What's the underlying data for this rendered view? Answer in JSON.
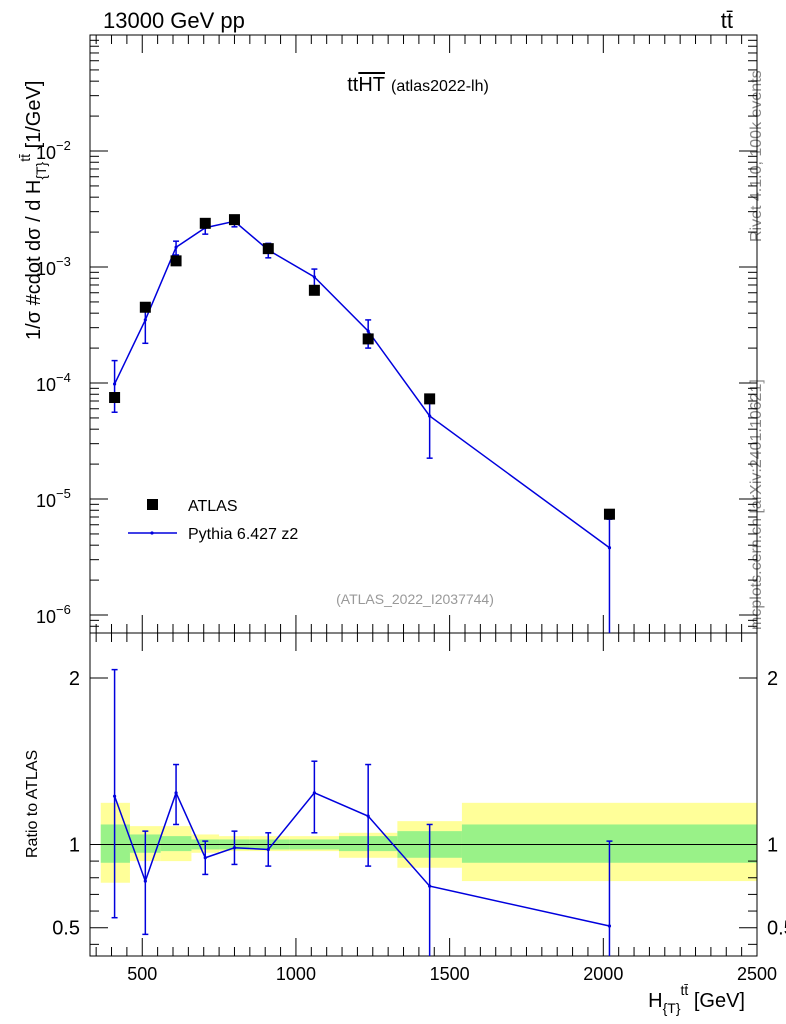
{
  "header": {
    "beam_label": "13000 GeV pp",
    "process_label": "tt̄"
  },
  "side_labels": {
    "rivet": "Rivet 4.1.0,  100k events",
    "mcplots": "mcplots.cern.ch [arXiv:2401.10621]"
  },
  "chart_data": [
    {
      "type": "scatter",
      "panel": "main",
      "title": "tt̄HT (atlas2022-lh)",
      "title_main": "tt",
      "title_over": "HT",
      "title_sub": "(atlas2022-lh)",
      "watermark": "(ATLAS_2022_I2037744)",
      "ylabel": "1/σ #cdot dσ / d H_{T}^{tt̄} [1/GeV]",
      "ylabel_main": "1/σ #cdot dσ / d H",
      "ylabel_sub": "{T}",
      "ylabel_sup": "tt̄",
      "ylabel_unit": " [1/GeV]",
      "yscale": "log",
      "ylim": [
        7e-07,
        0.1
      ],
      "xlim": [
        330,
        2500
      ],
      "y_tick_labels": [
        {
          "base": "10",
          "exp": "−6",
          "value": 1e-06
        },
        {
          "base": "10",
          "exp": "−5",
          "value": 1e-05
        },
        {
          "base": "10",
          "exp": "−4",
          "value": 0.0001
        },
        {
          "base": "10",
          "exp": "−3",
          "value": 0.001
        },
        {
          "base": "10",
          "exp": "−2",
          "value": 0.01
        }
      ],
      "legend_position": "bottom-left",
      "series": [
        {
          "name": "ATLAS",
          "color": "#000000",
          "marker": "square",
          "x": [
            410,
            510,
            610,
            705,
            800,
            910,
            1060,
            1235,
            1435,
            2020
          ],
          "y": [
            7.5e-05,
            0.00045,
            0.00113,
            0.00238,
            0.00256,
            0.00144,
            0.00063,
            0.00024,
            7.3e-05,
            7.4e-06
          ]
        },
        {
          "name": "Pythia 6.427 z2",
          "color": "#0000dd",
          "marker": "line",
          "x": [
            410,
            510,
            610,
            705,
            800,
            910,
            1060,
            1235,
            1435,
            2020
          ],
          "y": [
            9.8e-05,
            0.00035,
            0.00148,
            0.00218,
            0.00248,
            0.0014,
            0.00082,
            0.00028,
            5.2e-05,
            3.8e-06
          ],
          "yerr_low": [
            5.6e-05,
            0.00022,
            0.00127,
            0.00192,
            0.00222,
            0.0012,
            0.00067,
            0.0002,
            2.25e-05,
            1e-07
          ],
          "yerr_high": [
            0.000156,
            0.00049,
            0.00167,
            0.00242,
            0.00272,
            0.0016,
            0.00096,
            0.00035,
            7.6e-05,
            6.7e-06
          ]
        }
      ]
    },
    {
      "type": "scatter",
      "panel": "ratio",
      "ylabel": "Ratio to ATLAS",
      "xlabel": "H_{T}^{tt̄} [GeV]",
      "xlabel_main": "H",
      "xlabel_sub": "{T}",
      "xlabel_sup": "tt̄",
      "xlabel_unit": " [GeV]",
      "ylim": [
        0.33,
        2.27
      ],
      "xlim": [
        330,
        2500
      ],
      "x_ticks": [
        500,
        1000,
        1500,
        2000,
        2500
      ],
      "y_ticks": [
        0.5,
        1,
        2
      ],
      "reference_line": 1,
      "band_bins": [
        {
          "x_low": 365,
          "x_high": 460,
          "inner_low": 0.89,
          "inner_high": 1.12,
          "outer_low": 0.77,
          "outer_high": 1.25
        },
        {
          "x_low": 460,
          "x_high": 560,
          "inner_low": 0.95,
          "inner_high": 1.06,
          "outer_low": 0.9,
          "outer_high": 1.11
        },
        {
          "x_low": 560,
          "x_high": 660,
          "inner_low": 0.96,
          "inner_high": 1.05,
          "outer_low": 0.9,
          "outer_high": 1.11
        },
        {
          "x_low": 660,
          "x_high": 750,
          "inner_low": 0.97,
          "inner_high": 1.03,
          "outer_low": 0.95,
          "outer_high": 1.06
        },
        {
          "x_low": 750,
          "x_high": 850,
          "inner_low": 0.97,
          "inner_high": 1.03,
          "outer_low": 0.96,
          "outer_high": 1.05
        },
        {
          "x_low": 850,
          "x_high": 980,
          "inner_low": 0.97,
          "inner_high": 1.03,
          "outer_low": 0.96,
          "outer_high": 1.05
        },
        {
          "x_low": 980,
          "x_high": 1140,
          "inner_low": 0.97,
          "inner_high": 1.03,
          "outer_low": 0.96,
          "outer_high": 1.05
        },
        {
          "x_low": 1140,
          "x_high": 1330,
          "inner_low": 0.96,
          "inner_high": 1.05,
          "outer_low": 0.92,
          "outer_high": 1.07
        },
        {
          "x_low": 1330,
          "x_high": 1540,
          "inner_low": 0.92,
          "inner_high": 1.08,
          "outer_low": 0.86,
          "outer_high": 1.14
        },
        {
          "x_low": 1540,
          "x_high": 2500,
          "inner_low": 0.89,
          "inner_high": 1.12,
          "outer_low": 0.78,
          "outer_high": 1.25
        }
      ],
      "band_colors": {
        "inner": "#99f288",
        "outer": "#ffff99"
      },
      "series": [
        {
          "name": "Pythia 6.427 z2",
          "color": "#0000dd",
          "x": [
            410,
            510,
            610,
            705,
            800,
            910,
            1060,
            1235,
            1435,
            2020
          ],
          "y": [
            1.29,
            0.78,
            1.31,
            0.92,
            0.98,
            0.97,
            1.31,
            1.17,
            0.75,
            0.51
          ],
          "yerr_low": [
            0.56,
            0.46,
            1.12,
            0.82,
            0.88,
            0.87,
            1.07,
            0.87,
            0.3,
            0.3
          ],
          "yerr_high": [
            2.05,
            1.08,
            1.48,
            1.02,
            1.08,
            1.07,
            1.5,
            1.48,
            1.12,
            1.02
          ]
        }
      ]
    }
  ]
}
